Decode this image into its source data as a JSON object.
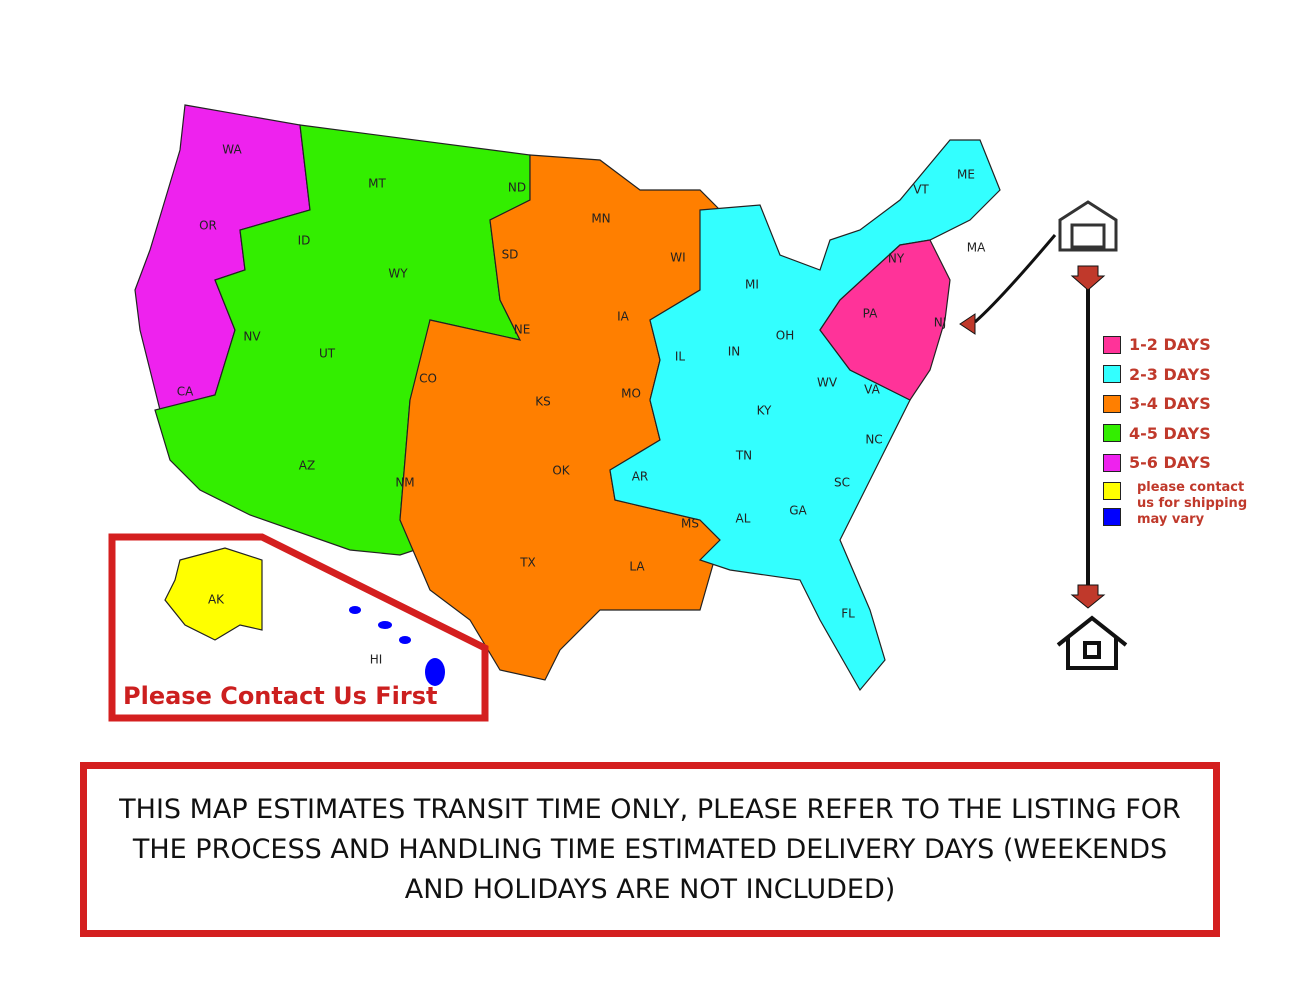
{
  "map": {
    "state_labels": [
      "WA",
      "OR",
      "CA",
      "MT",
      "ID",
      "NV",
      "WY",
      "UT",
      "AZ",
      "CO",
      "NM",
      "ND",
      "SD",
      "NE",
      "KS",
      "OK",
      "TX",
      "MN",
      "IA",
      "MO",
      "AR",
      "LA",
      "WI",
      "IL",
      "MI",
      "IN",
      "OH",
      "KY",
      "TN",
      "MS",
      "AL",
      "GA",
      "FL",
      "SC",
      "NC",
      "VA",
      "WV",
      "PA",
      "NY",
      "NJ",
      "VT",
      "ME",
      "MA",
      "AK",
      "HI"
    ],
    "legend": {
      "items": [
        {
          "color": "#ff3399",
          "label": "1-2 DAYS"
        },
        {
          "color": "#33ffff",
          "label": "2-3 DAYS"
        },
        {
          "color": "#ff7f00",
          "label": "3-4 DAYS"
        },
        {
          "color": "#33ee00",
          "label": "4-5 DAYS"
        },
        {
          "color": "#ee22ee",
          "label": "5-6 DAYS"
        }
      ],
      "note": {
        "colors": [
          "#ffff00",
          "#0000ff"
        ],
        "text": "please contact us for shipping may vary"
      }
    },
    "alaska_box_title": "Please Contact Us First",
    "notice": "THIS MAP ESTIMATES TRANSIT TIME ONLY, PLEASE REFER TO THE LISTING FOR THE PROCESS AND HANDLING TIME ESTIMATED DELIVERY DAYS (WEEKENDS AND HOLIDAYS ARE NOT INCLUDED)"
  }
}
